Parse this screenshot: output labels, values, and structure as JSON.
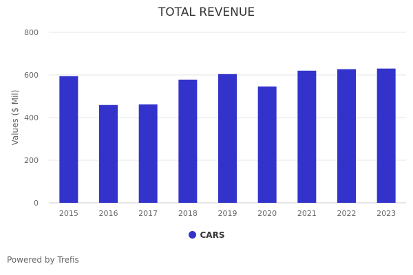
{
  "chart_data": {
    "type": "bar",
    "title": "TOTAL REVENUE",
    "ylabel": "Values ($ Mil)",
    "xlabel": "",
    "categories": [
      "2015",
      "2016",
      "2017",
      "2018",
      "2019",
      "2020",
      "2021",
      "2022",
      "2023"
    ],
    "series": [
      {
        "name": "CARS",
        "values": [
          594,
          459,
          462,
          578,
          604,
          546,
          620,
          627,
          630
        ],
        "color": "#3333cc"
      }
    ],
    "ylim": [
      0,
      800
    ],
    "yticks": [
      0,
      200,
      400,
      600,
      800
    ],
    "grid": true,
    "legend": "bottom"
  },
  "footer": "Powered by Trefis"
}
